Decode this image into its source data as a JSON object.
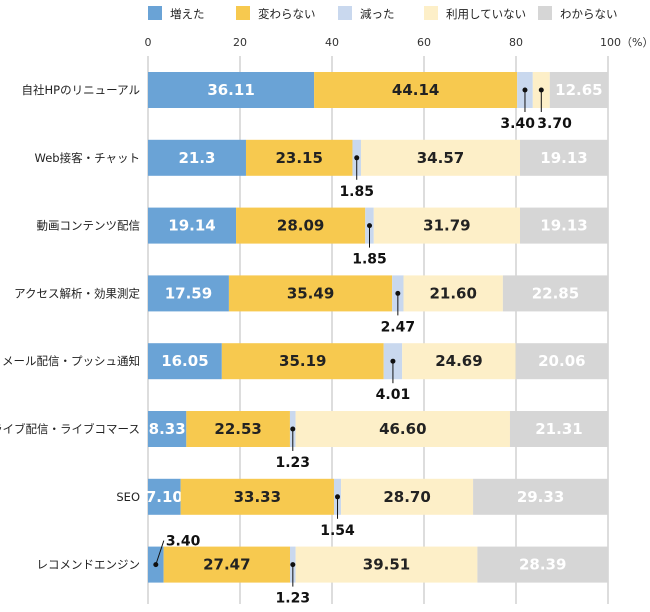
{
  "chart_data": {
    "type": "bar",
    "stacked": true,
    "orientation": "horizontal",
    "xlim": [
      0,
      100
    ],
    "x_ticks": [
      "0",
      "20",
      "40",
      "60",
      "80",
      "100（%）"
    ],
    "categories": [
      "自社HPのリニューアル",
      "Web接客・チャット",
      "動画コンテンツ配信",
      "アクセス解析・効果測定",
      "メール配信・プッシュ通知",
      "ライブ配信・ライブコマース",
      "SEO",
      "レコメンドエンジン"
    ],
    "series": [
      {
        "name": "増えた",
        "color": "#6aa3d6",
        "values": [
          36.11,
          21.3,
          19.14,
          17.59,
          16.05,
          8.33,
          7.1,
          3.4
        ],
        "labels": [
          "36.11",
          "21.3",
          "19.14",
          "17.59",
          "16.05",
          "8.33",
          "7.10",
          "3.40"
        ]
      },
      {
        "name": "変わらない",
        "color": "#f7c94f",
        "values": [
          44.14,
          23.15,
          28.09,
          35.49,
          35.19,
          22.53,
          33.33,
          27.47
        ],
        "labels": [
          "44.14",
          "23.15",
          "28.09",
          "35.49",
          "35.19",
          "22.53",
          "33.33",
          "27.47"
        ]
      },
      {
        "name": "減った",
        "color": "#c9d8ee",
        "values": [
          3.4,
          1.85,
          1.85,
          2.47,
          4.01,
          1.23,
          1.54,
          1.23
        ],
        "labels": [
          "3.40",
          "1.85",
          "1.85",
          "2.47",
          "4.01",
          "1.23",
          "1.54",
          "1.23"
        ]
      },
      {
        "name": "利用していない",
        "color": "#fdefc8",
        "values": [
          3.7,
          34.57,
          31.79,
          21.6,
          24.69,
          46.6,
          28.7,
          39.51
        ],
        "labels": [
          "3.70",
          "34.57",
          "31.79",
          "21.60",
          "24.69",
          "46.60",
          "28.70",
          "39.51"
        ]
      },
      {
        "name": "わからない",
        "color": "#d6d6d6",
        "values": [
          12.65,
          19.13,
          19.13,
          22.85,
          20.06,
          21.31,
          29.33,
          28.39
        ],
        "labels": [
          "12.65",
          "19.13",
          "19.13",
          "22.85",
          "20.06",
          "21.31",
          "29.33",
          "28.39"
        ]
      }
    ],
    "grid": true,
    "legend_position": "top"
  }
}
